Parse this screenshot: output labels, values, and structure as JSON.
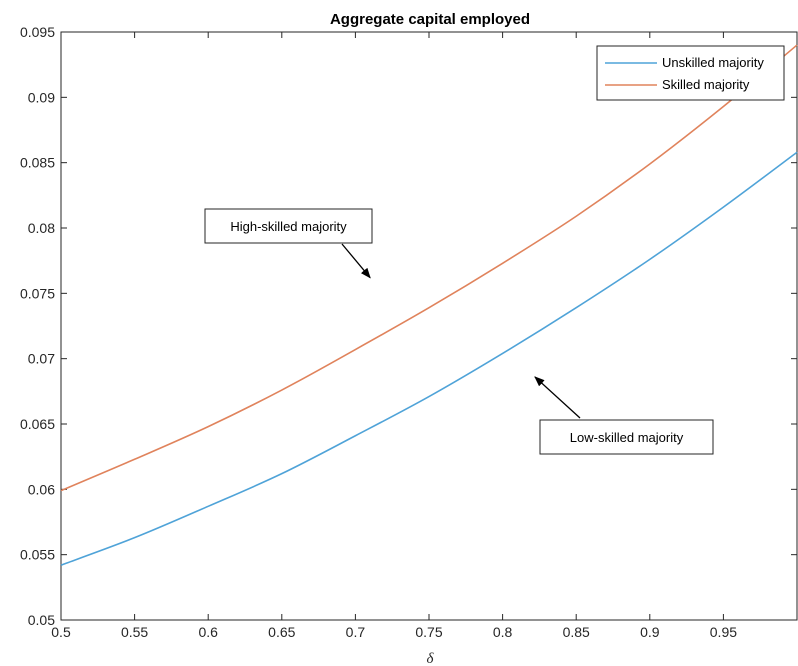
{
  "chart_data": {
    "type": "line",
    "title": "Aggregate capital employed",
    "xlabel": "δ",
    "ylabel": "",
    "xlim": [
      0.5,
      1.0
    ],
    "ylim": [
      0.05,
      0.095
    ],
    "xticks": [
      0.5,
      0.55,
      0.6,
      0.65,
      0.7,
      0.75,
      0.8,
      0.85,
      0.9,
      0.95
    ],
    "xtick_labels": [
      "0.5",
      "0.55",
      "0.6",
      "0.65",
      "0.7",
      "0.75",
      "0.8",
      "0.85",
      "0.9",
      "0.95"
    ],
    "yticks": [
      0.05,
      0.055,
      0.06,
      0.065,
      0.07,
      0.075,
      0.08,
      0.085,
      0.09,
      0.095
    ],
    "ytick_labels": [
      "0.05",
      "0.055",
      "0.06",
      "0.065",
      "0.07",
      "0.075",
      "0.08",
      "0.085",
      "0.09",
      "0.095"
    ],
    "grid": false,
    "legend_position": "top-right",
    "series": [
      {
        "name": "Unskilled majority",
        "color": "#4fa3d8",
        "x": [
          0.5,
          0.55,
          0.6,
          0.65,
          0.7,
          0.75,
          0.8,
          0.85,
          0.9,
          0.95,
          1.0
        ],
        "y": [
          0.0542,
          0.0563,
          0.0587,
          0.0612,
          0.0641,
          0.0671,
          0.0704,
          0.0739,
          0.0776,
          0.0816,
          0.0858
        ]
      },
      {
        "name": "Skilled majority",
        "color": "#e0835c",
        "x": [
          0.5,
          0.55,
          0.6,
          0.65,
          0.7,
          0.75,
          0.8,
          0.85,
          0.9,
          0.95,
          1.0
        ],
        "y": [
          0.0599,
          0.0623,
          0.0648,
          0.0676,
          0.0707,
          0.0739,
          0.0773,
          0.0809,
          0.0849,
          0.0893,
          0.094
        ]
      }
    ],
    "annotations": [
      {
        "text": "High-skilled majority",
        "arrow_to": [
          0.71,
          0.0762
        ]
      },
      {
        "text": "Low-skilled majority",
        "arrow_to": [
          0.822,
          0.0686
        ]
      }
    ]
  }
}
